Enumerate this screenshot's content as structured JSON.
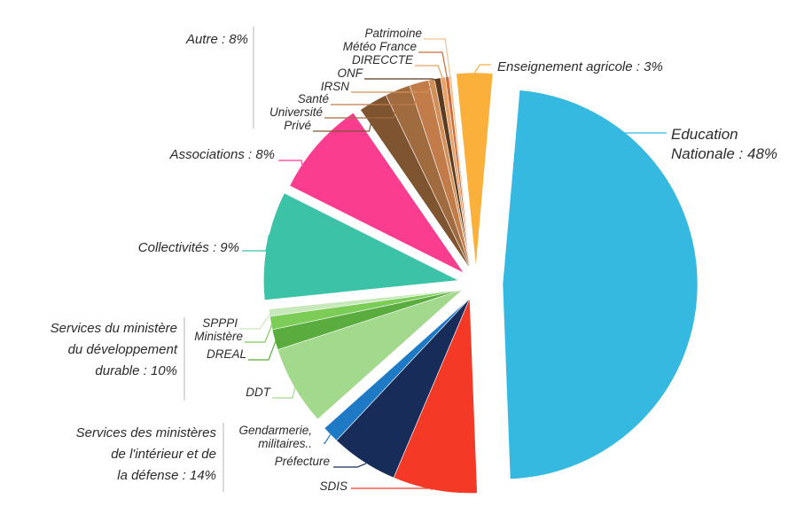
{
  "chart_data": {
    "type": "pie",
    "title": "",
    "slices": [
      {
        "id": "edu",
        "label": "Education Nationale : 48%",
        "value": 48,
        "color": "#35b9e0"
      },
      {
        "id": "sdis",
        "label": "SDIS",
        "value": 7.0,
        "color": "#f43a26"
      },
      {
        "id": "prefecture",
        "label": "Préfecture",
        "value": 5.6,
        "color": "#172c59"
      },
      {
        "id": "gendarmerie",
        "label": "Gendarmerie, militaires..",
        "value": 1.4,
        "color": "#1f7ac6"
      },
      {
        "id": "ddt",
        "label": "DDT",
        "value": 6.6,
        "color": "#a3d98c"
      },
      {
        "id": "dreal",
        "label": "DREAL",
        "value": 1.7,
        "color": "#5aac3e"
      },
      {
        "id": "ministere",
        "label": "Ministère",
        "value": 1.1,
        "color": "#7ccc58"
      },
      {
        "id": "spppi",
        "label": "SPPPI",
        "value": 0.6,
        "color": "#c7e8ba"
      },
      {
        "id": "collectivites",
        "label": "Collectivités : 9%",
        "value": 9,
        "color": "#3cc2a6"
      },
      {
        "id": "associations",
        "label": "Associations : 8%",
        "value": 8,
        "color": "#fb3d90"
      },
      {
        "id": "prive",
        "label": "Privé",
        "value": 2.4,
        "color": "#7e5431"
      },
      {
        "id": "universite",
        "label": "Université",
        "value": 2.1,
        "color": "#a06b3f"
      },
      {
        "id": "sante",
        "label": "Santé",
        "value": 1.6,
        "color": "#c17c49"
      },
      {
        "id": "irsn",
        "label": "IRSN",
        "value": 0.5,
        "color": "#d28f58"
      },
      {
        "id": "onf",
        "label": "ONF",
        "value": 0.5,
        "color": "#5b3a1e"
      },
      {
        "id": "direccte",
        "label": "DIRECCTE",
        "value": 0.4,
        "color": "#e8a368"
      },
      {
        "id": "meteo",
        "label": "Météo France",
        "value": 0.3,
        "color": "#cc6a3a"
      },
      {
        "id": "patrimoine",
        "label": "Patrimoine",
        "value": 0.2,
        "color": "#f0c290"
      },
      {
        "id": "enseignement",
        "label": "Enseignement agricole : 3%",
        "value": 3,
        "color": "#fbb03b"
      }
    ],
    "groups": [
      {
        "id": "autre",
        "label": "Autre : 8%"
      },
      {
        "id": "mdd",
        "label_lines": [
          "Services du ministère",
          "du développement",
          "durable : 10%"
        ]
      },
      {
        "id": "mid",
        "label_lines": [
          "Services des ministères",
          "de l'intérieur et de",
          "la défense : 14%"
        ]
      }
    ],
    "label_lines": {
      "edu": [
        "Education",
        "Nationale : 48%"
      ],
      "gendarmerie": [
        "Gendarmerie,",
        "militaires.."
      ]
    }
  }
}
